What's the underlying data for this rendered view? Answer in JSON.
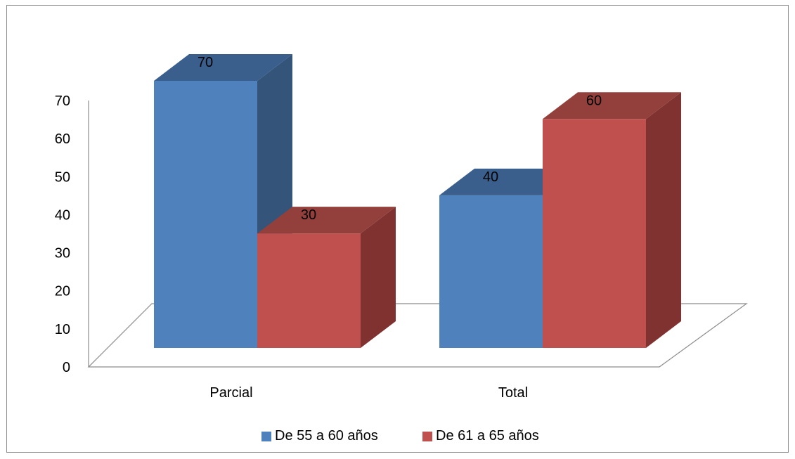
{
  "chart_data": {
    "type": "bar",
    "variant": "3d-clustered-column",
    "categories": [
      "Parcial",
      "Total"
    ],
    "series": [
      {
        "name": "De 55 a 60 años",
        "values": [
          70,
          40
        ],
        "color": "#4F81BD",
        "top_color": "#3A5F8C",
        "side_color": "#345479"
      },
      {
        "name": "De 61 a 65 años",
        "values": [
          30,
          60
        ],
        "color": "#C0504D",
        "top_color": "#93403D",
        "side_color": "#7F3230"
      }
    ],
    "ylim": [
      0,
      70
    ],
    "yticks": [
      "0",
      "10",
      "20",
      "30",
      "40",
      "50",
      "60",
      "70"
    ],
    "data_labels": true,
    "grid": false,
    "legend": "bottom",
    "floor_color": "#ffffff",
    "axis_color": "#8c8c8c"
  }
}
